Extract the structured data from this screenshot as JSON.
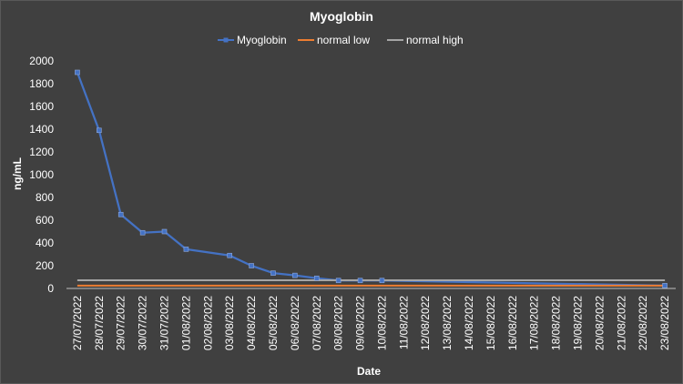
{
  "chart_data": {
    "type": "line",
    "title": "Myoglobin",
    "xlabel": "Date",
    "ylabel": "ng/mL",
    "ylim": [
      0,
      2000
    ],
    "yticks": [
      0,
      200,
      400,
      600,
      800,
      1000,
      1200,
      1400,
      1600,
      1800,
      2000
    ],
    "grid": false,
    "legend_position": "top",
    "categories": [
      "27/07/2022",
      "28/07/2022",
      "29/07/2022",
      "30/07/2022",
      "31/07/2022",
      "01/08/2022",
      "02/08/2022",
      "03/08/2022",
      "04/08/2022",
      "05/08/2022",
      "06/08/2022",
      "07/08/2022",
      "08/08/2022",
      "09/08/2022",
      "10/08/2022",
      "11/08/2022",
      "12/08/2022",
      "13/08/2022",
      "14/08/2022",
      "15/08/2022",
      "16/08/2022",
      "17/08/2022",
      "18/08/2022",
      "19/08/2022",
      "20/08/2022",
      "21/08/2022",
      "22/08/2022",
      "23/08/2022"
    ],
    "series": [
      {
        "name": "Myoglobin",
        "color": "#4472c4",
        "marker": "square",
        "values": [
          1900,
          1390,
          650,
          490,
          500,
          345,
          null,
          290,
          200,
          135,
          115,
          90,
          70,
          70,
          70,
          null,
          null,
          null,
          null,
          null,
          null,
          null,
          null,
          null,
          null,
          null,
          null,
          25
        ]
      },
      {
        "name": "normal low",
        "color": "#ed7d31",
        "marker": "none",
        "values": [
          25,
          25,
          25,
          25,
          25,
          25,
          25,
          25,
          25,
          25,
          25,
          25,
          25,
          25,
          25,
          25,
          25,
          25,
          25,
          25,
          25,
          25,
          25,
          25,
          25,
          25,
          25,
          25
        ]
      },
      {
        "name": "normal high",
        "color": "#a5a5a5",
        "marker": "none",
        "values": [
          72,
          72,
          72,
          72,
          72,
          72,
          72,
          72,
          72,
          72,
          72,
          72,
          72,
          72,
          72,
          72,
          72,
          72,
          72,
          72,
          72,
          72,
          72,
          72,
          72,
          72,
          72,
          72
        ]
      }
    ]
  }
}
